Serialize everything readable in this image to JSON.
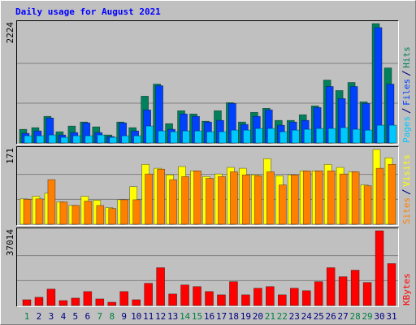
{
  "chart_data": {
    "type": "bar",
    "title": "Daily usage for August 2021",
    "categories": [
      "1",
      "2",
      "3",
      "4",
      "5",
      "6",
      "7",
      "8",
      "9",
      "10",
      "11",
      "12",
      "13",
      "14",
      "15",
      "16",
      "17",
      "18",
      "19",
      "20",
      "21",
      "22",
      "23",
      "24",
      "25",
      "26",
      "27",
      "28",
      "29",
      "30",
      "31"
    ],
    "label_color": "#000080",
    "weekend_indices": [
      0,
      6,
      7,
      13,
      14,
      20,
      21,
      27,
      28
    ],
    "weekend_color": "#008040",
    "panels": [
      {
        "ylim": [
          0,
          2224
        ],
        "yticks": [
          2224
        ],
        "grid": [
          741,
          1483
        ],
        "series": [
          {
            "name": "Hits",
            "color": "#00805c",
            "values": [
              255,
              286,
              496,
              210,
              316,
              391,
              301,
              150,
              391,
              286,
              872,
              1097,
              361,
              601,
              541,
              406,
              601,
              752,
              391,
              571,
              646,
              421,
              421,
              526,
              691,
              1172,
              977,
              1127,
              767,
              2224,
              1398
            ]
          },
          {
            "name": "Files",
            "color": "#0040ff",
            "values": [
              180,
              225,
              466,
              150,
              195,
              376,
              195,
              120,
              376,
              225,
              616,
              1067,
              256,
              541,
              496,
              391,
              421,
              737,
              346,
              496,
              616,
              331,
              391,
              421,
              661,
              1052,
              827,
              1052,
              737,
              2149,
              1097
            ]
          },
          {
            "name": "Pages",
            "color": "#00c8ff",
            "values": [
              135,
              135,
              150,
              105,
              135,
              135,
              150,
              105,
              135,
              135,
              316,
              225,
              210,
              225,
              225,
              210,
              210,
              240,
              240,
              271,
              271,
              210,
              240,
              256,
              271,
              271,
              286,
              256,
              240,
              331,
              331
            ]
          }
        ]
      },
      {
        "ylim": [
          0,
          171
        ],
        "yticks": [
          171
        ],
        "grid": [
          57,
          114
        ],
        "series": [
          {
            "name": "Visits",
            "color": "#ffff00",
            "values": [
              58,
              64,
              71,
              51,
              43,
              64,
              55,
              38,
              56,
              86,
              137,
              128,
              113,
              132,
              122,
              109,
              115,
              130,
              128,
              113,
              150,
              111,
              113,
              122,
              122,
              137,
              130,
              120,
              90,
              171,
              152
            ]
          },
          {
            "name": "Sites",
            "color": "#ff8000",
            "values": [
              57,
              58,
              102,
              51,
              43,
              53,
              43,
              36,
              56,
              56,
              115,
              126,
              102,
              109,
              122,
              105,
              109,
              120,
              113,
              111,
              120,
              90,
              113,
              122,
              122,
              122,
              115,
              120,
              88,
              128,
              137
            ]
          }
        ]
      },
      {
        "ylim": [
          0,
          37014
        ],
        "yticks": [
          37014
        ],
        "grid": [
          12338,
          24676
        ],
        "series": [
          {
            "name": "KBytes",
            "color": "#ff0000",
            "values": [
              2848,
              4069,
              8138,
              2441,
              3662,
              6917,
              3255,
              1628,
              6917,
              2848,
              10987,
              18716,
              5697,
              10173,
              9359,
              6917,
              5290,
              11801,
              5290,
              8545,
              9359,
              5290,
              8545,
              7324,
              11801,
              18716,
              14246,
              17495,
              11394,
              37014,
              20751
            ]
          }
        ]
      }
    ]
  }
}
